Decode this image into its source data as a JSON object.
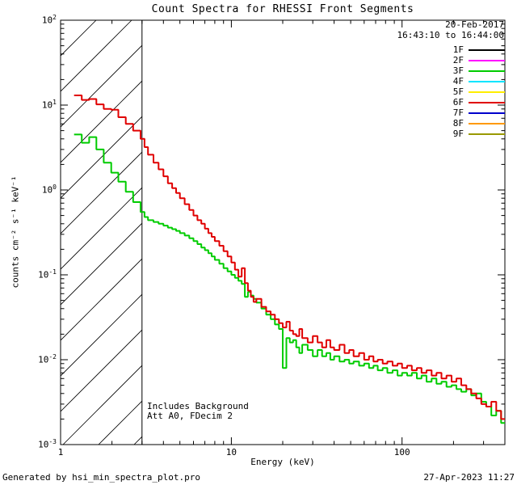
{
  "title": "Count Spectra for RHESSI Front Segments",
  "header": {
    "date_line1": "20-Feb-2017",
    "date_line2": "16:43:10 to 16:44:00"
  },
  "annotations": {
    "line1": "Includes Background",
    "line2": "Att A0, FDecim 2"
  },
  "footer": {
    "left": "Generated by hsi_min_spectra_plot.pro",
    "right": "27-Apr-2023 11:27"
  },
  "legend": {
    "entries": [
      {
        "label": "1F",
        "color": "#000000"
      },
      {
        "label": "2F",
        "color": "#ff00ff"
      },
      {
        "label": "3F",
        "color": "#00cc00"
      },
      {
        "label": "4F",
        "color": "#00e5ff"
      },
      {
        "label": "5F",
        "color": "#ffee00"
      },
      {
        "label": "6F",
        "color": "#e00000"
      },
      {
        "label": "7F",
        "color": "#0000cc"
      },
      {
        "label": "8F",
        "color": "#ff9900"
      },
      {
        "label": "9F",
        "color": "#999900"
      }
    ]
  },
  "chart_data": {
    "type": "line",
    "title": "Count Spectra for RHESSI Front Segments",
    "xlabel": "Energy (keV)",
    "ylabel": "counts cm⁻² s⁻¹ keV⁻¹",
    "xscale": "log",
    "yscale": "log",
    "xlim": [
      1,
      400
    ],
    "ylim": [
      0.001,
      100
    ],
    "x_major_ticks": [
      1,
      10,
      100
    ],
    "y_major_tick_exponents": [
      -3,
      -2,
      -1,
      0,
      1,
      2
    ],
    "grid": false,
    "legend_position": "upper right",
    "hatch_region": {
      "x_start": 1,
      "x_end": 3
    },
    "series": [
      {
        "name": "3F",
        "color": "#00cc00",
        "step": true,
        "x": [
          1.2,
          1.33,
          1.47,
          1.62,
          1.79,
          1.98,
          2.18,
          2.41,
          2.66,
          2.94,
          3.1,
          3.25,
          3.5,
          3.75,
          4.0,
          4.25,
          4.5,
          4.75,
          5.0,
          5.33,
          5.67,
          6.0,
          6.33,
          6.67,
          7.0,
          7.33,
          7.67,
          8.0,
          8.5,
          9.0,
          9.5,
          10.0,
          10.5,
          11.0,
          11.5,
          12.0,
          12.5,
          13.0,
          13.5,
          14.0,
          15.0,
          16.0,
          17.0,
          18.0,
          19.0,
          20.0,
          21.0,
          22.0,
          23.0,
          24.0,
          25.0,
          26.0,
          28.0,
          30.0,
          32.0,
          34.0,
          36.0,
          38.0,
          40.0,
          43.0,
          46.0,
          49.0,
          52.0,
          56.0,
          60.0,
          64.0,
          68.0,
          72.0,
          77.0,
          82.0,
          88.0,
          94.0,
          100.0,
          107.0,
          114.0,
          122.0,
          130.0,
          139.0,
          149.0,
          159.0,
          170.0,
          182.0,
          195.0,
          208.0,
          222.0,
          238.0,
          254.0,
          272.0,
          291.0,
          311.0,
          333.0,
          356.0,
          380.0
        ],
        "y": [
          4.5,
          3.6,
          4.2,
          3.0,
          2.1,
          1.6,
          1.25,
          0.95,
          0.72,
          0.55,
          0.48,
          0.44,
          0.42,
          0.4,
          0.38,
          0.36,
          0.345,
          0.33,
          0.31,
          0.29,
          0.27,
          0.25,
          0.23,
          0.21,
          0.195,
          0.18,
          0.165,
          0.15,
          0.135,
          0.12,
          0.11,
          0.1,
          0.092,
          0.085,
          0.078,
          0.055,
          0.063,
          0.057,
          0.052,
          0.047,
          0.04,
          0.034,
          0.03,
          0.026,
          0.023,
          0.008,
          0.018,
          0.016,
          0.017,
          0.014,
          0.012,
          0.015,
          0.013,
          0.011,
          0.013,
          0.011,
          0.012,
          0.01,
          0.011,
          0.0095,
          0.01,
          0.009,
          0.0095,
          0.0085,
          0.009,
          0.008,
          0.0085,
          0.0075,
          0.008,
          0.007,
          0.0075,
          0.0065,
          0.007,
          0.0065,
          0.007,
          0.006,
          0.0065,
          0.0055,
          0.006,
          0.0052,
          0.0055,
          0.0048,
          0.005,
          0.0045,
          0.0042,
          0.0045,
          0.0038,
          0.004,
          0.0032,
          0.0028,
          0.0022,
          0.0025,
          0.0018
        ]
      },
      {
        "name": "6F",
        "color": "#e00000",
        "step": true,
        "x": [
          1.2,
          1.33,
          1.47,
          1.62,
          1.79,
          1.98,
          2.18,
          2.41,
          2.66,
          2.94,
          3.1,
          3.25,
          3.5,
          3.75,
          4.0,
          4.25,
          4.5,
          4.75,
          5.0,
          5.33,
          5.67,
          6.0,
          6.33,
          6.67,
          7.0,
          7.33,
          7.67,
          8.0,
          8.5,
          9.0,
          9.5,
          10.0,
          10.5,
          11.0,
          11.5,
          12.0,
          12.5,
          13.0,
          13.5,
          14.0,
          15.0,
          16.0,
          17.0,
          18.0,
          19.0,
          20.0,
          21.0,
          22.0,
          23.0,
          24.0,
          25.0,
          26.0,
          28.0,
          30.0,
          32.0,
          34.0,
          36.0,
          38.0,
          40.0,
          43.0,
          46.0,
          49.0,
          52.0,
          56.0,
          60.0,
          64.0,
          68.0,
          72.0,
          77.0,
          82.0,
          88.0,
          94.0,
          100.0,
          107.0,
          114.0,
          122.0,
          130.0,
          139.0,
          149.0,
          159.0,
          170.0,
          182.0,
          195.0,
          208.0,
          222.0,
          238.0,
          254.0,
          272.0,
          291.0,
          311.0,
          333.0,
          356.0,
          380.0
        ],
        "y": [
          13,
          11.5,
          11.8,
          10.2,
          9.0,
          8.8,
          7.2,
          6.0,
          5.0,
          4.0,
          3.2,
          2.6,
          2.1,
          1.75,
          1.45,
          1.2,
          1.05,
          0.92,
          0.8,
          0.68,
          0.58,
          0.5,
          0.44,
          0.4,
          0.35,
          0.31,
          0.28,
          0.25,
          0.22,
          0.19,
          0.165,
          0.14,
          0.115,
          0.095,
          0.12,
          0.08,
          0.065,
          0.055,
          0.048,
          0.052,
          0.042,
          0.037,
          0.034,
          0.03,
          0.027,
          0.024,
          0.028,
          0.022,
          0.02,
          0.019,
          0.023,
          0.018,
          0.016,
          0.019,
          0.016,
          0.014,
          0.017,
          0.014,
          0.013,
          0.015,
          0.012,
          0.013,
          0.011,
          0.012,
          0.01,
          0.011,
          0.0095,
          0.01,
          0.009,
          0.0095,
          0.0085,
          0.009,
          0.008,
          0.0085,
          0.0075,
          0.008,
          0.007,
          0.0075,
          0.0065,
          0.007,
          0.006,
          0.0065,
          0.0055,
          0.006,
          0.005,
          0.0045,
          0.004,
          0.0035,
          0.003,
          0.0028,
          0.0032,
          0.0025,
          0.002
        ]
      }
    ]
  }
}
